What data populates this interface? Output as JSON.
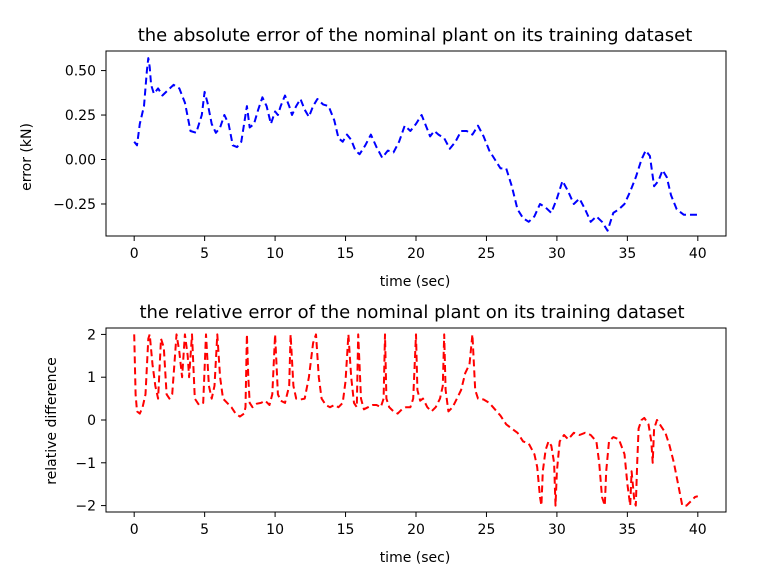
{
  "chart_data": [
    {
      "type": "line",
      "title": "the absolute error of the nominal plant on its training dataset",
      "xlabel": "time (sec)",
      "ylabel": "error (kN)",
      "xlim": [
        -2,
        42
      ],
      "ylim": [
        -0.43,
        0.61
      ],
      "xticks": [
        "0",
        "5",
        "10",
        "15",
        "20",
        "25",
        "30",
        "35",
        "40"
      ],
      "yticks": [
        "0.50",
        "0.25",
        "0.00",
        "−0.25"
      ],
      "grid": false,
      "series": [
        {
          "color": "#0000ff",
          "linestyle": "dashed",
          "x": [
            0,
            0.2,
            0.4,
            0.7,
            0.9,
            1.0,
            1.1,
            1.2,
            1.4,
            1.7,
            2.0,
            2.4,
            2.8,
            3.2,
            3.6,
            4.0,
            4.4,
            4.8,
            5.0,
            5.2,
            5.5,
            5.8,
            6.1,
            6.4,
            6.7,
            7.0,
            7.3,
            7.6,
            8.0,
            8.2,
            8.5,
            8.8,
            9.1,
            9.4,
            9.7,
            10.0,
            10.2,
            10.4,
            10.7,
            11.0,
            11.2,
            11.5,
            11.8,
            12.1,
            12.4,
            12.7,
            13.0,
            13.4,
            13.8,
            14.2,
            14.5,
            14.8,
            15.1,
            15.4,
            15.7,
            16.0,
            16.4,
            16.8,
            17.2,
            17.6,
            18.0,
            18.4,
            18.8,
            19.2,
            19.6,
            20.0,
            20.4,
            20.7,
            21.0,
            21.3,
            21.6,
            22.0,
            22.4,
            22.8,
            23.2,
            23.6,
            24.0,
            24.4,
            24.8,
            25.2,
            25.6,
            26.0,
            26.4,
            26.8,
            27.2,
            27.6,
            28.0,
            28.4,
            28.8,
            29.2,
            29.6,
            30.0,
            30.4,
            30.8,
            31.2,
            31.6,
            32.0,
            32.4,
            32.8,
            33.2,
            33.6,
            34.0,
            34.4,
            34.8,
            35.2,
            35.6,
            36.0,
            36.3,
            36.6,
            36.9,
            37.2,
            37.5,
            37.8,
            38.1,
            38.5,
            39.0,
            39.5,
            40.0
          ],
          "y": [
            0.1,
            0.08,
            0.2,
            0.3,
            0.5,
            0.57,
            0.52,
            0.42,
            0.37,
            0.4,
            0.36,
            0.39,
            0.42,
            0.4,
            0.32,
            0.16,
            0.15,
            0.25,
            0.38,
            0.32,
            0.2,
            0.15,
            0.18,
            0.25,
            0.2,
            0.08,
            0.07,
            0.1,
            0.3,
            0.18,
            0.2,
            0.28,
            0.35,
            0.3,
            0.2,
            0.27,
            0.25,
            0.3,
            0.36,
            0.3,
            0.25,
            0.3,
            0.34,
            0.28,
            0.24,
            0.3,
            0.34,
            0.31,
            0.3,
            0.22,
            0.12,
            0.1,
            0.14,
            0.11,
            0.05,
            0.03,
            0.08,
            0.14,
            0.07,
            0.01,
            0.05,
            0.04,
            0.1,
            0.19,
            0.16,
            0.2,
            0.25,
            0.19,
            0.13,
            0.16,
            0.14,
            0.12,
            0.06,
            0.1,
            0.16,
            0.16,
            0.14,
            0.19,
            0.13,
            0.05,
            0.0,
            -0.05,
            -0.05,
            -0.15,
            -0.28,
            -0.33,
            -0.35,
            -0.32,
            -0.25,
            -0.27,
            -0.3,
            -0.22,
            -0.12,
            -0.18,
            -0.25,
            -0.22,
            -0.28,
            -0.35,
            -0.32,
            -0.35,
            -0.4,
            -0.3,
            -0.28,
            -0.25,
            -0.18,
            -0.1,
            0.0,
            0.05,
            0.02,
            -0.15,
            -0.12,
            -0.06,
            -0.1,
            -0.2,
            -0.28,
            -0.31,
            -0.31,
            -0.31
          ]
        }
      ]
    },
    {
      "type": "line",
      "title": "the relative error of the nominal plant on its training dataset",
      "xlabel": "time (sec)",
      "ylabel": "relative difference",
      "xlim": [
        -2,
        42
      ],
      "ylim": [
        -2.15,
        2.15
      ],
      "xticks": [
        "0",
        "5",
        "10",
        "15",
        "20",
        "25",
        "30",
        "35",
        "40"
      ],
      "yticks": [
        "2",
        "1",
        "0",
        "−1",
        "−2"
      ],
      "grid": false,
      "series": [
        {
          "color": "#ff0000",
          "linestyle": "dashed",
          "x": [
            0,
            0.1,
            0.2,
            0.4,
            0.6,
            0.8,
            1.0,
            1.1,
            1.3,
            1.5,
            1.7,
            1.9,
            2.1,
            2.3,
            2.5,
            2.7,
            2.9,
            3.0,
            3.2,
            3.4,
            3.6,
            3.8,
            3.9,
            4.1,
            4.3,
            4.6,
            4.9,
            5.1,
            5.3,
            5.5,
            5.7,
            5.9,
            6.1,
            6.3,
            6.6,
            6.9,
            7.2,
            7.5,
            7.8,
            7.9,
            8.0,
            8.1,
            8.2,
            8.4,
            8.7,
            9.0,
            9.3,
            9.6,
            9.8,
            10.0,
            10.2,
            10.4,
            10.7,
            11.0,
            11.1,
            11.3,
            11.5,
            11.8,
            12.1,
            12.4,
            12.7,
            12.9,
            13.1,
            13.3,
            13.6,
            13.9,
            14.2,
            14.5,
            14.8,
            15.0,
            15.2,
            15.4,
            15.6,
            15.8,
            15.9,
            16.1,
            16.3,
            16.6,
            16.9,
            17.2,
            17.5,
            17.7,
            17.8,
            17.9,
            18.1,
            18.4,
            18.7,
            19.0,
            19.3,
            19.6,
            19.8,
            20.0,
            20.1,
            20.3,
            20.5,
            20.8,
            21.1,
            21.4,
            21.7,
            21.9,
            22.0,
            22.1,
            22.3,
            22.6,
            22.9,
            23.2,
            23.5,
            23.8,
            24.0,
            24.2,
            24.4,
            24.8,
            25.2,
            25.6,
            26.0,
            26.4,
            26.8,
            27.2,
            27.6,
            28.0,
            28.4,
            28.6,
            28.8,
            28.9,
            29.0,
            29.2,
            29.4,
            29.6,
            29.8,
            29.9,
            30.0,
            30.2,
            30.5,
            30.8,
            31.2,
            31.6,
            32.0,
            32.4,
            32.8,
            33.0,
            33.2,
            33.4,
            33.5,
            33.7,
            34.0,
            34.4,
            34.8,
            35.0,
            35.2,
            35.3,
            35.5,
            35.6,
            35.7,
            35.8,
            36.0,
            36.2,
            36.5,
            36.7,
            36.8,
            36.9,
            37.1,
            37.4,
            37.7,
            38.0,
            38.3,
            38.6,
            38.9,
            39.2,
            39.5,
            39.8,
            40.0
          ],
          "y": [
            2.0,
            0.6,
            0.2,
            0.15,
            0.3,
            0.6,
            1.9,
            2.0,
            1.3,
            0.8,
            0.5,
            1.9,
            1.7,
            0.6,
            0.5,
            0.6,
            1.5,
            2.0,
            1.6,
            1.0,
            2.0,
            1.5,
            1.0,
            2.0,
            0.5,
            0.35,
            0.4,
            2.0,
            0.8,
            0.5,
            0.8,
            2.0,
            1.0,
            0.5,
            0.4,
            0.3,
            0.15,
            0.08,
            0.15,
            0.3,
            2.0,
            1.0,
            0.4,
            0.3,
            0.38,
            0.4,
            0.45,
            0.35,
            0.6,
            2.0,
            0.6,
            0.45,
            0.4,
            0.8,
            2.0,
            0.8,
            0.5,
            0.48,
            0.5,
            1.0,
            1.8,
            2.0,
            1.0,
            0.5,
            0.35,
            0.3,
            0.35,
            0.3,
            0.4,
            0.9,
            2.0,
            1.0,
            0.4,
            0.3,
            2.0,
            0.5,
            0.25,
            0.3,
            0.35,
            0.35,
            0.3,
            0.5,
            2.0,
            0.5,
            0.3,
            0.2,
            0.15,
            0.25,
            0.3,
            0.3,
            0.5,
            2.0,
            0.7,
            0.45,
            0.5,
            0.3,
            0.2,
            0.3,
            0.5,
            0.8,
            2.0,
            0.7,
            0.2,
            0.3,
            0.5,
            0.7,
            1.1,
            1.3,
            2.0,
            0.7,
            0.5,
            0.48,
            0.4,
            0.25,
            0.1,
            -0.1,
            -0.2,
            -0.3,
            -0.5,
            -0.55,
            -0.8,
            -1.1,
            -1.8,
            -2.0,
            -1.2,
            -0.7,
            -0.5,
            -0.6,
            -1.0,
            -2.0,
            -1.2,
            -0.5,
            -0.35,
            -0.45,
            -0.3,
            -0.35,
            -0.3,
            -0.35,
            -0.5,
            -1.0,
            -1.8,
            -2.0,
            -1.2,
            -0.5,
            -0.4,
            -0.45,
            -0.8,
            -1.5,
            -2.0,
            -1.2,
            -1.9,
            -2.0,
            -1.0,
            -0.2,
            0.0,
            0.05,
            -0.1,
            -0.5,
            -1.0,
            -0.2,
            0.0,
            -0.15,
            -0.3,
            -0.6,
            -1.0,
            -1.5,
            -2.0,
            -2.0,
            -1.9,
            -1.8,
            -1.78
          ]
        }
      ]
    }
  ]
}
